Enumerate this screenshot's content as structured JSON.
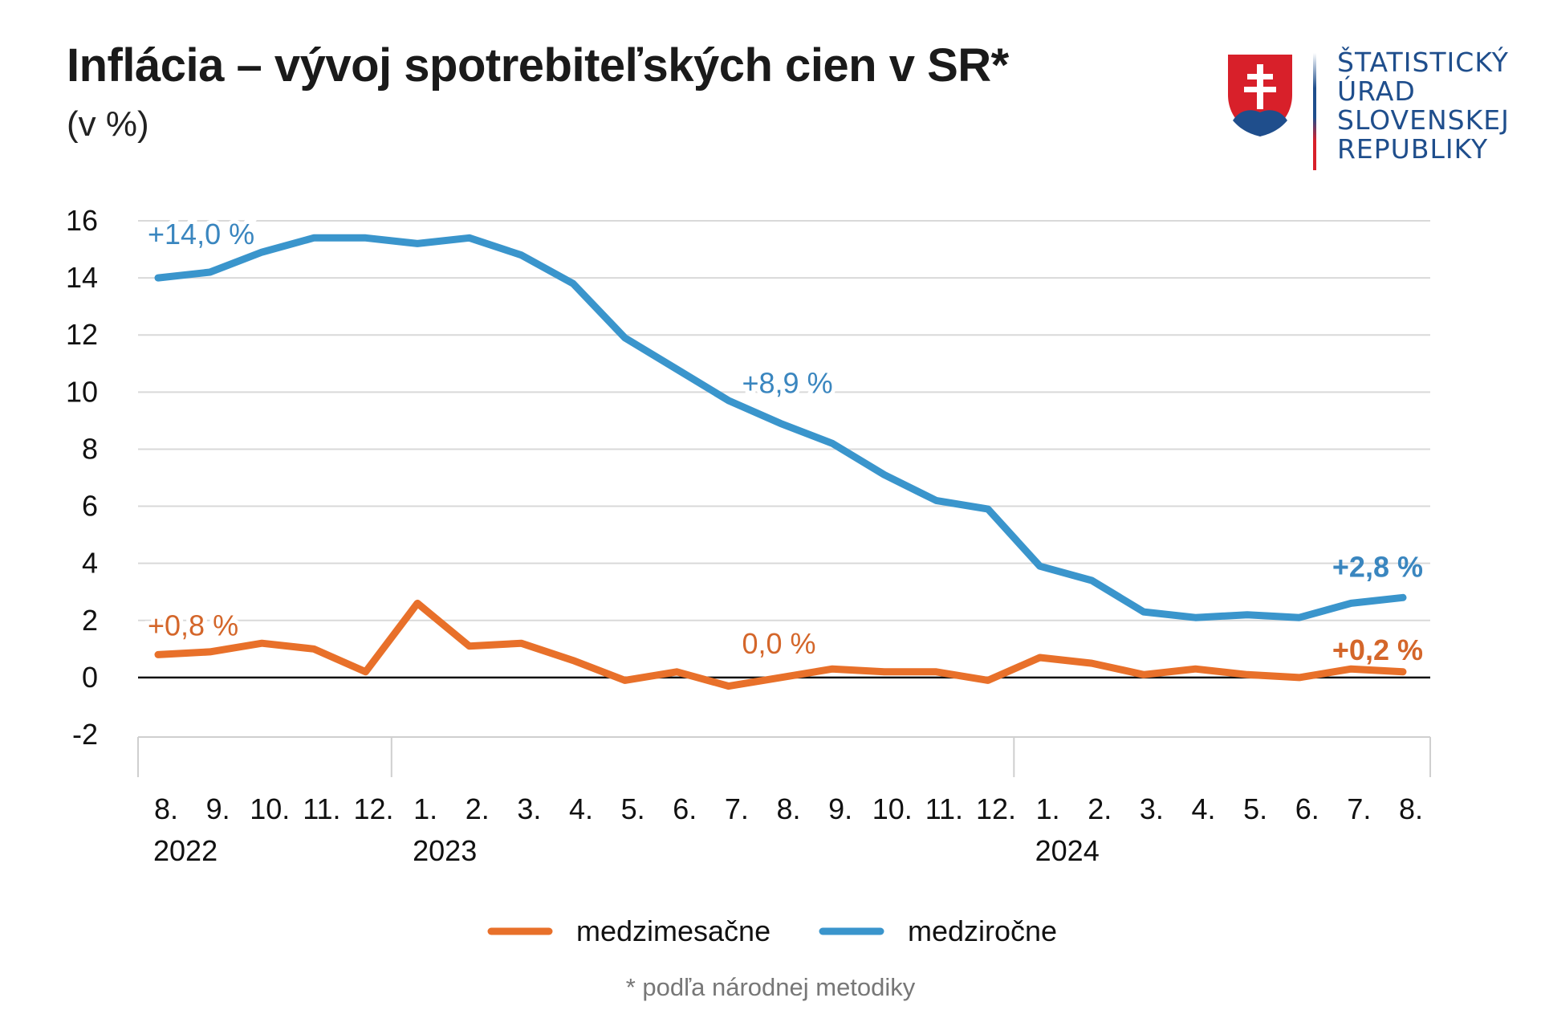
{
  "logo": {
    "lines": [
      "ŠTATISTICKÝ",
      "ÚRAD",
      "SLOVENSKEJ",
      "REPUBLIKY"
    ]
  },
  "footnote": "* podľa národnej metodiky",
  "colors": {
    "monthly": "#e8702a",
    "yearly": "#3a95cc",
    "grid": "#d9d9d9",
    "zero": "#111111"
  },
  "chart_data": {
    "type": "line",
    "title": "Inflácia – vývoj spotrebiteľských cien v SR*",
    "subtitle": "(v %)",
    "ylim": [
      -2,
      16
    ],
    "yticks": [
      -2,
      0,
      2,
      4,
      6,
      8,
      10,
      12,
      14,
      16
    ],
    "categories": [
      "8.",
      "9.",
      "10.",
      "11.",
      "12.",
      "1.",
      "2.",
      "3.",
      "4.",
      "5.",
      "6.",
      "7.",
      "8.",
      "9.",
      "10.",
      "11.",
      "12.",
      "1.",
      "2.",
      "3.",
      "4.",
      "5.",
      "6.",
      "7.",
      "8."
    ],
    "years": [
      {
        "label": "2022",
        "index": 0
      },
      {
        "label": "2023",
        "index": 5
      },
      {
        "label": "2024",
        "index": 17
      }
    ],
    "series": [
      {
        "name": "medzimesačne",
        "color": "#e8702a",
        "values": [
          0.8,
          0.9,
          1.2,
          1.0,
          0.2,
          2.6,
          1.1,
          1.2,
          0.6,
          -0.1,
          0.2,
          -0.3,
          0.0,
          0.3,
          0.2,
          0.2,
          -0.1,
          0.7,
          0.5,
          0.1,
          0.3,
          0.1,
          0.0,
          0.3,
          0.2
        ]
      },
      {
        "name": "medziročne",
        "color": "#3a95cc",
        "values": [
          14.0,
          14.2,
          14.9,
          15.4,
          15.4,
          15.2,
          15.4,
          14.8,
          13.8,
          11.9,
          10.8,
          9.7,
          8.9,
          8.2,
          7.1,
          6.2,
          5.9,
          3.9,
          3.4,
          2.3,
          2.1,
          2.2,
          2.1,
          2.6,
          2.8
        ]
      }
    ],
    "annotations": [
      {
        "text": "+14,0 %",
        "series": 1,
        "index": 0,
        "bold": false
      },
      {
        "text": "+8,9 %",
        "series": 1,
        "index": 12,
        "bold": false
      },
      {
        "text": "+2,8 %",
        "series": 1,
        "index": 24,
        "bold": true
      },
      {
        "text": "+0,8 %",
        "series": 0,
        "index": 0,
        "bold": false
      },
      {
        "text": "0,0 %",
        "series": 0,
        "index": 12,
        "bold": false
      },
      {
        "text": "+0,2 %",
        "series": 0,
        "index": 24,
        "bold": true
      }
    ],
    "legend": [
      "medzimesačne",
      "medziročne"
    ]
  }
}
